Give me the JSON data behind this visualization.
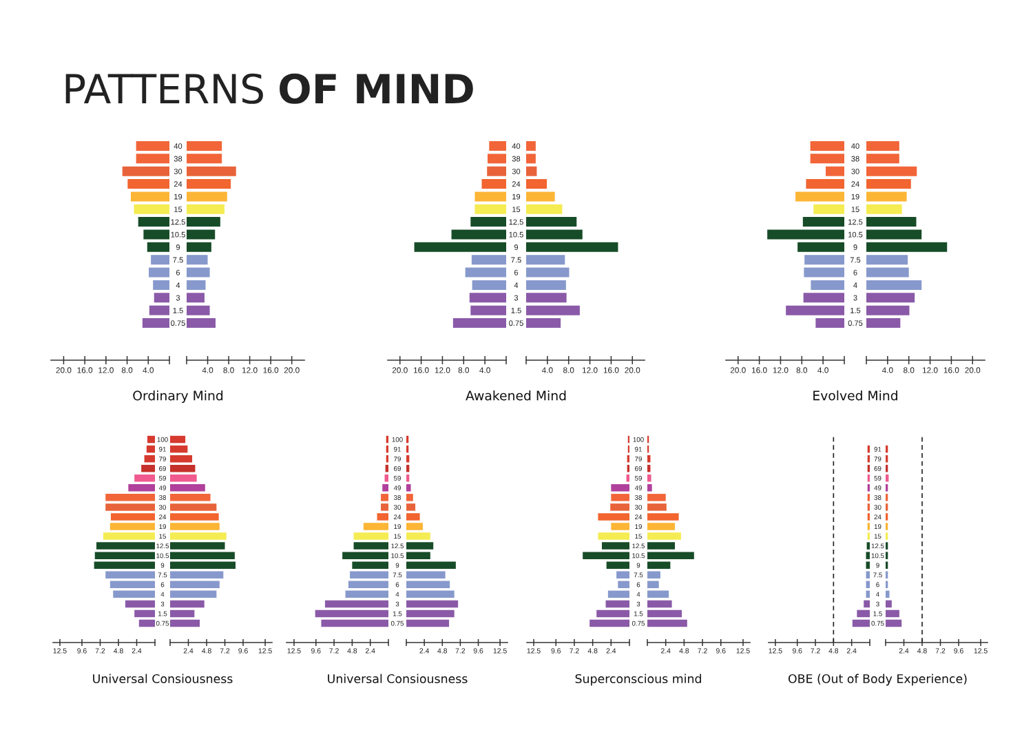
{
  "chart_data": [
    {
      "type": "other",
      "title": "PATTERNS OF MIND"
    },
    {
      "type": "bar",
      "orientation": "horizontal",
      "categories": [
        null,
        null,
        null,
        null,
        null,
        null,
        null,
        null,
        null,
        null,
        null,
        null,
        null,
        null,
        null
      ],
      "values": [
        6.3,
        6.3,
        8.9,
        7.9,
        7.3,
        6.7,
        5.9,
        4.9,
        4.2,
        3.5,
        3.9,
        3.1,
        2.9,
        3.8,
        5.1
      ],
      "colors": [
        "#f26539",
        "#f26539",
        "#e8633a",
        "#f26430",
        "#fcb535",
        "#f4ec52",
        "#174c28",
        "#174c28",
        "#174c28",
        "#8799cc",
        "#8799cc",
        "#8799cc",
        "#8a5aa8",
        "#8a5aa8",
        "#8a5aa8"
      ],
      "xlim": [
        22.4,
        0
      ],
      "xticks": [
        {
          "value": 20,
          "label": "20.0"
        },
        {
          "value": 16,
          "label": "16.0"
        },
        {
          "value": 12,
          "label": "12.0"
        },
        {
          "value": 8,
          "label": "8.0"
        },
        {
          "value": 4,
          "label": "4.0"
        }
      ],
      "tick_labels": "x"
    },
    {
      "type": "bar",
      "orientation": "horizontal",
      "title": "Ordinary Mind",
      "categories": [
        "40",
        "38",
        "30",
        "24",
        "19",
        "15",
        "12.5",
        "10.5",
        "9",
        "7.5",
        "6",
        "4",
        "3",
        "1.5",
        "0.75"
      ],
      "values": [
        6.7,
        6.7,
        9.4,
        8.4,
        7.7,
        7.2,
        6.4,
        5.4,
        4.7,
        4.0,
        4.4,
        3.6,
        3.4,
        4.4,
        5.5
      ],
      "colors": [
        "#f26539",
        "#f26539",
        "#e8633a",
        "#f26430",
        "#fcb535",
        "#f4ec52",
        "#174c28",
        "#174c28",
        "#174c28",
        "#8799cc",
        "#8799cc",
        "#8799cc",
        "#8a5aa8",
        "#8a5aa8",
        "#8a5aa8"
      ],
      "xlim": [
        0,
        22.4
      ],
      "xticks": [
        {
          "value": 4,
          "label": "4.0"
        },
        {
          "value": 8,
          "label": "8.0"
        },
        {
          "value": 12,
          "label": "12.0"
        },
        {
          "value": 16,
          "label": "16.0"
        },
        {
          "value": 20,
          "label": "20.0"
        }
      ]
    },
    {
      "type": "bar",
      "orientation": "horizontal",
      "categories": [
        null,
        null,
        null,
        null,
        null,
        null,
        null,
        null,
        null,
        null,
        null,
        null,
        null,
        null,
        null
      ],
      "values": [
        3.2,
        3.5,
        3.6,
        4.6,
        5.9,
        5.9,
        6.7,
        10.3,
        17.3,
        6.5,
        7.7,
        6.4,
        6.9,
        6.7,
        10.0
      ],
      "colors": [
        "#f26539",
        "#f26539",
        "#e8633a",
        "#f26430",
        "#fcb535",
        "#f4ec52",
        "#174c28",
        "#174c28",
        "#174c28",
        "#8799cc",
        "#8799cc",
        "#8799cc",
        "#8a5aa8",
        "#8a5aa8",
        "#8a5aa8"
      ],
      "xlim": [
        22.3,
        0
      ],
      "xticks": [
        {
          "value": 20,
          "label": "20.0"
        },
        {
          "value": 16,
          "label": "16.0"
        },
        {
          "value": 12,
          "label": "12.0"
        },
        {
          "value": 8,
          "label": "8.0"
        },
        {
          "value": 4,
          "label": "4.0"
        }
      ],
      "tick_labels": "x"
    },
    {
      "type": "bar",
      "orientation": "horizontal",
      "title": "Awakened Mind",
      "categories": [
        "40",
        "38",
        "30",
        "24",
        "19",
        "15",
        "12.5",
        "10.5",
        "9",
        "7.5",
        "6",
        "4",
        "3",
        "1.5",
        "0.75"
      ],
      "values": [
        1.8,
        1.8,
        2.0,
        3.9,
        5.4,
        6.8,
        9.5,
        10.6,
        17.3,
        7.3,
        8.1,
        7.5,
        7.6,
        10.1,
        6.5
      ],
      "colors": [
        "#f26539",
        "#f26539",
        "#e8633a",
        "#f26430",
        "#fcb535",
        "#f4ec52",
        "#174c28",
        "#174c28",
        "#174c28",
        "#8799cc",
        "#8799cc",
        "#8799cc",
        "#8a5aa8",
        "#8a5aa8",
        "#8a5aa8"
      ],
      "xlim": [
        0,
        22.3
      ],
      "xticks": [
        {
          "value": 4,
          "label": "4.0"
        },
        {
          "value": 8,
          "label": "8.0"
        },
        {
          "value": 12,
          "label": "12.0"
        },
        {
          "value": 16,
          "label": "16.0"
        },
        {
          "value": 20,
          "label": "20.0"
        }
      ]
    },
    {
      "type": "bar",
      "orientation": "horizontal",
      "categories": [
        null,
        null,
        null,
        null,
        null,
        null,
        null,
        null,
        null,
        null,
        null,
        null,
        null,
        null,
        null
      ],
      "values": [
        6.4,
        6.4,
        3.5,
        7.2,
        9.2,
        5.8,
        7.8,
        14.5,
        8.8,
        7.5,
        7.6,
        6.3,
        7.7,
        11.0,
        5.4
      ],
      "colors": [
        "#f26539",
        "#f26539",
        "#f26539",
        "#f26430",
        "#fcb535",
        "#f4ec52",
        "#174c28",
        "#174c28",
        "#174c28",
        "#8799cc",
        "#8799cc",
        "#8799cc",
        "#8a5aa8",
        "#8a5aa8",
        "#8a5aa8"
      ],
      "xlim": [
        22.3,
        0
      ],
      "xticks": [
        {
          "value": 20,
          "label": "20.0"
        },
        {
          "value": 16,
          "label": "16.0"
        },
        {
          "value": 12,
          "label": "12.0"
        },
        {
          "value": 8,
          "label": "8.0"
        },
        {
          "value": 4,
          "label": "4.0"
        }
      ],
      "tick_labels": "x"
    },
    {
      "type": "bar",
      "orientation": "horizontal",
      "title": "Evolved Mind",
      "categories": [
        "40",
        "38",
        "30",
        "24",
        "19",
        "15",
        "12.5",
        "10.5",
        "9",
        "7.5",
        "6",
        "4",
        "3",
        "1.5",
        "0.75"
      ],
      "values": [
        6.2,
        6.2,
        9.5,
        8.4,
        7.6,
        6.7,
        9.4,
        10.4,
        15.2,
        7.8,
        8.0,
        10.4,
        9.1,
        8.1,
        6.4
      ],
      "colors": [
        "#f26539",
        "#f26539",
        "#f26539",
        "#f26430",
        "#fcb535",
        "#f4ec52",
        "#174c28",
        "#174c28",
        "#174c28",
        "#8799cc",
        "#8799cc",
        "#8799cc",
        "#8a5aa8",
        "#8a5aa8",
        "#8a5aa8"
      ],
      "xlim": [
        0,
        22.3
      ],
      "xticks": [
        {
          "value": 4,
          "label": "4.0"
        },
        {
          "value": 8,
          "label": "8.0"
        },
        {
          "value": 12,
          "label": "12.0"
        },
        {
          "value": 16,
          "label": "16.0"
        },
        {
          "value": 20,
          "label": "20.0"
        }
      ]
    },
    {
      "type": "bar",
      "orientation": "horizontal",
      "categories": [
        null,
        null,
        null,
        null,
        null,
        null,
        null,
        null,
        null,
        null,
        null,
        null,
        null,
        null,
        null,
        null,
        null,
        null,
        null,
        null
      ],
      "values": [
        1.0,
        1.1,
        1.4,
        1.8,
        2.7,
        3.5,
        6.5,
        6.5,
        5.8,
        5.9,
        6.8,
        7.7,
        7.9,
        8.0,
        6.5,
        5.9,
        5.5,
        3.9,
        2.7,
        2.1
      ],
      "colors": [
        "#d63a2e",
        "#d63a2e",
        "#d63a2e",
        "#c5302a",
        "#f05a8f",
        "#b0409b",
        "#f26539",
        "#e8633a",
        "#f26430",
        "#fcb535",
        "#f4ec52",
        "#174c28",
        "#174c28",
        "#174c28",
        "#8799cc",
        "#8799cc",
        "#8799cc",
        "#8a5aa8",
        "#8a5aa8",
        "#8a5aa8"
      ],
      "xlim": [
        13.4,
        0
      ],
      "xticks": [
        12.5,
        9.6,
        7.2,
        4.8,
        2.4
      ],
      "tick_labels": "x"
    },
    {
      "type": "bar",
      "orientation": "horizontal",
      "title": "Universal Consiousness",
      "categories": [
        "100",
        "91",
        "79",
        "69",
        "59",
        "49",
        "38",
        "30",
        "24",
        "19",
        "15",
        "12.5",
        "10.5",
        "9",
        "7.5",
        "6",
        "4",
        "3",
        "1.5",
        "0.75"
      ],
      "values": [
        2.0,
        2.3,
        2.9,
        3.3,
        3.5,
        4.6,
        5.3,
        6.1,
        6.4,
        6.5,
        7.4,
        7.2,
        8.5,
        8.6,
        7.0,
        6.5,
        6.1,
        4.5,
        3.2,
        3.9
      ],
      "colors": [
        "#d63a2e",
        "#d63a2e",
        "#d63a2e",
        "#c5302a",
        "#f05a8f",
        "#b0409b",
        "#f26539",
        "#e8633a",
        "#f26430",
        "#fcb535",
        "#f4ec52",
        "#174c28",
        "#174c28",
        "#174c28",
        "#8799cc",
        "#8799cc",
        "#8799cc",
        "#8a5aa8",
        "#8a5aa8",
        "#8a5aa8"
      ],
      "xlim": [
        0,
        13.4
      ],
      "xticks": [
        2.4,
        4.8,
        7.2,
        9.6,
        12.5
      ]
    },
    {
      "type": "bar",
      "orientation": "horizontal",
      "categories": [
        null,
        null,
        null,
        null,
        null,
        null,
        null,
        null,
        null,
        null,
        null,
        null,
        null,
        null,
        null,
        null,
        null,
        null,
        null,
        null
      ],
      "values": [
        0.3,
        0.3,
        0.3,
        0.4,
        0.5,
        0.8,
        1.0,
        1.0,
        1.5,
        3.3,
        4.6,
        4.6,
        6.1,
        4.8,
        5.1,
        5.3,
        5.7,
        8.4,
        9.7,
        8.9
      ],
      "colors": [
        "#d63a2e",
        "#d63a2e",
        "#d63a2e",
        "#c5302a",
        "#f05a8f",
        "#b0409b",
        "#f26539",
        "#e8633a",
        "#f26430",
        "#fcb535",
        "#f4ec52",
        "#174c28",
        "#174c28",
        "#174c28",
        "#8799cc",
        "#8799cc",
        "#8799cc",
        "#8a5aa8",
        "#8a5aa8",
        "#8a5aa8"
      ],
      "xlim": [
        13.5,
        0
      ],
      "xticks": [
        12.5,
        9.6,
        7.2,
        4.8,
        2.4
      ],
      "tick_labels": "x"
    },
    {
      "type": "bar",
      "orientation": "horizontal",
      "title": "Universal Consiousness",
      "categories": [
        "100",
        "91",
        "79",
        "69",
        "59",
        "49",
        "38",
        "30",
        "24",
        "19",
        "15",
        "12.5",
        "10.5",
        "9",
        "7.5",
        "6",
        "4",
        "3",
        "1.5",
        "0.75"
      ],
      "values": [
        0.3,
        0.3,
        0.4,
        0.4,
        0.4,
        0.6,
        0.9,
        1.2,
        1.8,
        2.2,
        3.2,
        3.6,
        3.2,
        6.6,
        5.2,
        5.8,
        6.4,
        6.9,
        6.4,
        5.7
      ],
      "colors": [
        "#d63a2e",
        "#d63a2e",
        "#d63a2e",
        "#c5302a",
        "#f05a8f",
        "#b0409b",
        "#f26539",
        "#e8633a",
        "#f26430",
        "#fcb535",
        "#f4ec52",
        "#174c28",
        "#174c28",
        "#174c28",
        "#8799cc",
        "#8799cc",
        "#8799cc",
        "#8a5aa8",
        "#8a5aa8",
        "#8a5aa8"
      ],
      "xlim": [
        0,
        13.5
      ],
      "xticks": [
        2.4,
        4.8,
        7.2,
        9.6,
        12.5
      ]
    },
    {
      "type": "bar",
      "orientation": "horizontal",
      "categories": [
        null,
        null,
        null,
        null,
        null,
        null,
        null,
        null,
        null,
        null,
        null,
        null,
        null,
        null,
        null,
        null,
        null,
        null,
        null,
        null
      ],
      "values": [
        0.2,
        0.2,
        0.3,
        0.3,
        0.4,
        2.4,
        2.4,
        2.5,
        4.1,
        2.4,
        4.1,
        3.6,
        6.1,
        3.0,
        1.7,
        1.5,
        2.8,
        3.1,
        4.3,
        5.2
      ],
      "colors": [
        "#d63a2e",
        "#d63a2e",
        "#d63a2e",
        "#c5302a",
        "#f05a8f",
        "#b0409b",
        "#f26539",
        "#e8633a",
        "#f26430",
        "#fcb535",
        "#f4ec52",
        "#174c28",
        "#174c28",
        "#174c28",
        "#8799cc",
        "#8799cc",
        "#8799cc",
        "#8a5aa8",
        "#8a5aa8",
        "#8a5aa8"
      ],
      "xlim": [
        13.4,
        0
      ],
      "xticks": [
        12.5,
        9.6,
        7.2,
        4.8,
        2.4
      ],
      "tick_labels": "x"
    },
    {
      "type": "bar",
      "orientation": "horizontal",
      "title": "Superconscious mind",
      "categories": [
        "100",
        "91",
        "79",
        "69",
        "59",
        "49",
        "38",
        "30",
        "24",
        "19",
        "15",
        "12.5",
        "10.5",
        "9",
        "7.5",
        "6",
        "4",
        "3",
        "1.5",
        "0.75"
      ],
      "values": [
        0.2,
        0.2,
        0.4,
        0.4,
        0.5,
        0.6,
        2.4,
        2.5,
        4.1,
        3.6,
        4.4,
        3.6,
        6.1,
        3.0,
        1.7,
        1.5,
        2.8,
        3.2,
        4.5,
        5.2
      ],
      "colors": [
        "#d63a2e",
        "#d63a2e",
        "#d63a2e",
        "#c5302a",
        "#f05a8f",
        "#b0409b",
        "#f26539",
        "#e8633a",
        "#f26430",
        "#fcb535",
        "#f4ec52",
        "#174c28",
        "#174c28",
        "#174c28",
        "#8799cc",
        "#8799cc",
        "#8799cc",
        "#8a5aa8",
        "#8a5aa8",
        "#8a5aa8"
      ],
      "xlim": [
        0,
        13.4
      ],
      "xticks": [
        2.4,
        4.8,
        7.2,
        9.6,
        12.5
      ]
    },
    {
      "type": "bar",
      "orientation": "horizontal",
      "categories": [
        null,
        null,
        null,
        null,
        null,
        null,
        null,
        null,
        null,
        null,
        null,
        null,
        null,
        null,
        null,
        null,
        null,
        null,
        null
      ],
      "values": [
        0.3,
        0.3,
        0.3,
        0.3,
        0.3,
        0.3,
        0.3,
        0.3,
        0.3,
        0.3,
        0.4,
        0.5,
        0.5,
        0.5,
        0.5,
        0.5,
        0.8,
        1.7,
        2.3
      ],
      "colors": [
        "#d63a2e",
        "#d63a2e",
        "#c5302a",
        "#f05a8f",
        "#b0409b",
        "#f26539",
        "#e8633a",
        "#f26430",
        "#fcb535",
        "#f4ec52",
        "#174c28",
        "#174c28",
        "#174c28",
        "#8799cc",
        "#8799cc",
        "#8799cc",
        "#8a5aa8",
        "#8a5aa8",
        "#8a5aa8"
      ],
      "xlim": [
        13.4,
        0
      ],
      "xticks": [
        12.5,
        9.6,
        7.2,
        4.8,
        2.4
      ],
      "tick_labels": "x",
      "ref_lines": [
        {
          "axis": "x",
          "value": 4.8,
          "color": "#222222",
          "line_style": "dashed"
        }
      ]
    },
    {
      "type": "bar",
      "orientation": "horizontal",
      "title": "OBE (Out of Body Experience)",
      "categories": [
        "91",
        "79",
        "69",
        "59",
        "49",
        "38",
        "30",
        "24",
        "19",
        "15",
        "12.5",
        "10.5",
        "9",
        "7.5",
        "6",
        "4",
        "3",
        "1.5",
        "0.75"
      ],
      "values": [
        0.3,
        0.3,
        0.3,
        0.4,
        0.3,
        0.3,
        0.3,
        0.3,
        0.3,
        0.3,
        0.3,
        0.3,
        0.3,
        0.3,
        0.3,
        0.5,
        0.8,
        1.8,
        2.1
      ],
      "colors": [
        "#d63a2e",
        "#d63a2e",
        "#c5302a",
        "#f05a8f",
        "#b0409b",
        "#f26539",
        "#e8633a",
        "#f26430",
        "#fcb535",
        "#f4ec52",
        "#174c28",
        "#174c28",
        "#174c28",
        "#8799cc",
        "#8799cc",
        "#8799cc",
        "#8a5aa8",
        "#8a5aa8",
        "#8a5aa8"
      ],
      "xlim": [
        0,
        13.4
      ],
      "xticks": [
        2.4,
        4.8,
        7.2,
        9.6,
        12.5
      ],
      "ref_lines": [
        {
          "axis": "x",
          "value": 4.8,
          "color": "#222222",
          "line_style": "dashed"
        }
      ]
    }
  ]
}
